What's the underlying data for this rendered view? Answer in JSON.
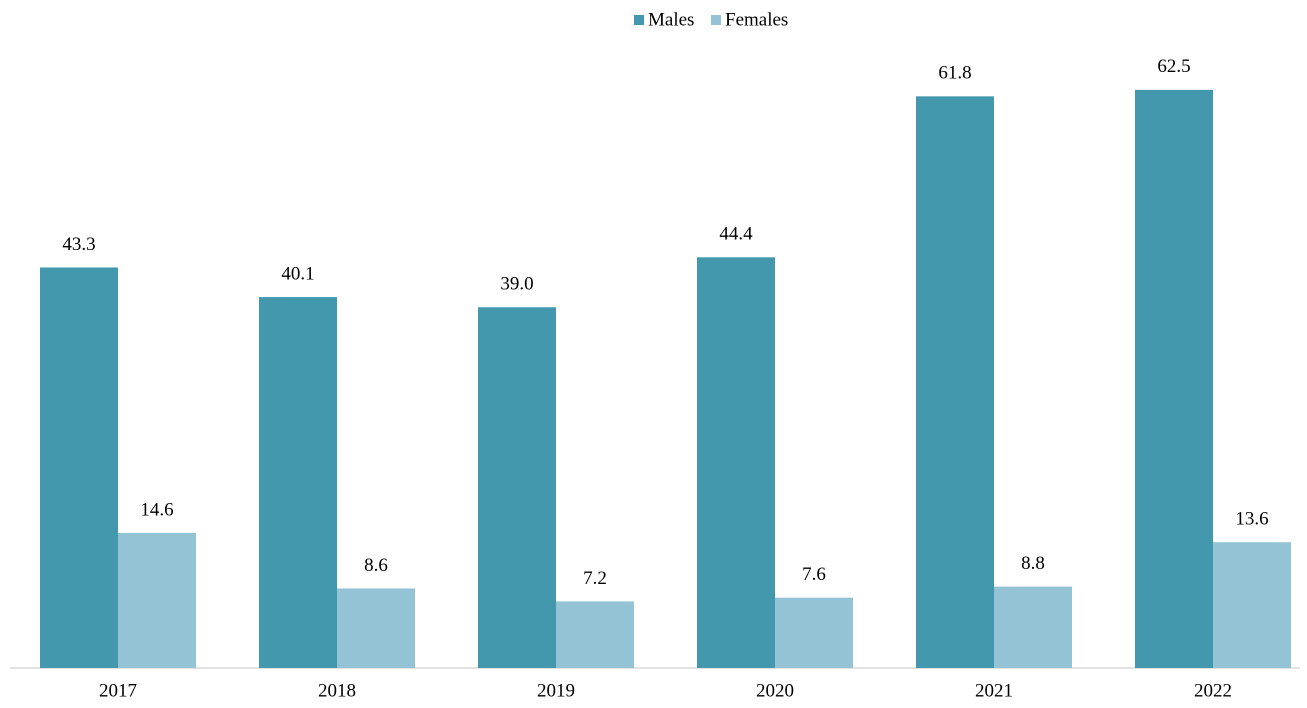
{
  "chart_data": {
    "type": "bar",
    "categories": [
      "2017",
      "2018",
      "2019",
      "2020",
      "2021",
      "2022"
    ],
    "series": [
      {
        "name": "Males",
        "color": "#4398ae",
        "values": [
          43.3,
          40.1,
          39.0,
          44.4,
          61.8,
          62.5
        ],
        "value_labels": [
          "43.3",
          "40.1",
          "39.0",
          "44.4",
          "61.8",
          "62.5"
        ]
      },
      {
        "name": "Females",
        "color": "#93c3d4",
        "values": [
          14.6,
          8.6,
          7.2,
          7.6,
          8.8,
          13.6
        ],
        "value_labels": [
          "14.6",
          "8.6",
          "7.2",
          "7.6",
          "8.8",
          "13.6"
        ]
      }
    ],
    "ylim": [
      0,
      70
    ],
    "legend": "top"
  }
}
